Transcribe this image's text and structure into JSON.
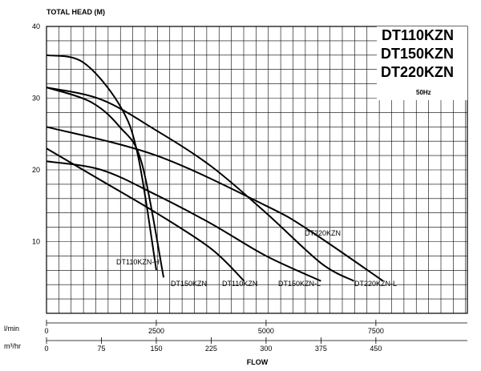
{
  "chart_data": {
    "type": "line",
    "ylabel": "TOTAL HEAD (M)",
    "xlabel": "FLOW",
    "models": [
      "DT110KZN",
      "DT150KZN",
      "DT220KZN"
    ],
    "frequency": "50Hz",
    "ylim": [
      0,
      40
    ],
    "yticks": [
      10,
      20,
      30,
      40
    ],
    "xlim_m3h": [
      0,
      575
    ],
    "x_units": [
      {
        "unit": "l/min",
        "ticks": [
          0,
          2500,
          5000,
          7500
        ]
      },
      {
        "unit": "m³/hr",
        "ticks": [
          0,
          75,
          150,
          225,
          300,
          375,
          450
        ]
      }
    ],
    "grid": true,
    "series": [
      {
        "name": "DT110KZN-H",
        "x": [
          0,
          50,
          100,
          125,
          150
        ],
        "y": [
          36,
          35,
          29,
          22,
          6
        ]
      },
      {
        "name": "DT150KZN",
        "x": [
          0,
          60,
          100,
          130,
          160
        ],
        "y": [
          31.5,
          29.5,
          26,
          21,
          5
        ]
      },
      {
        "name": "DT110KZN",
        "x": [
          0,
          75,
          150,
          225,
          270
        ],
        "y": [
          23,
          18.5,
          14,
          9,
          4.5
        ]
      },
      {
        "name": "DT150KZN-L",
        "x": [
          0,
          75,
          150,
          225,
          300,
          375
        ],
        "y": [
          21.2,
          20,
          16.5,
          12.5,
          8,
          4.5
        ]
      },
      {
        "name": "DT220KZN",
        "x": [
          0,
          75,
          150,
          225,
          300,
          375,
          420
        ],
        "y": [
          31.5,
          29.8,
          25.5,
          20.5,
          14,
          7,
          4.5
        ]
      },
      {
        "name": "DT220KZN-L",
        "x": [
          0,
          150,
          300,
          360,
          460
        ],
        "y": [
          26,
          22,
          15,
          11.5,
          4.5
        ]
      }
    ]
  }
}
